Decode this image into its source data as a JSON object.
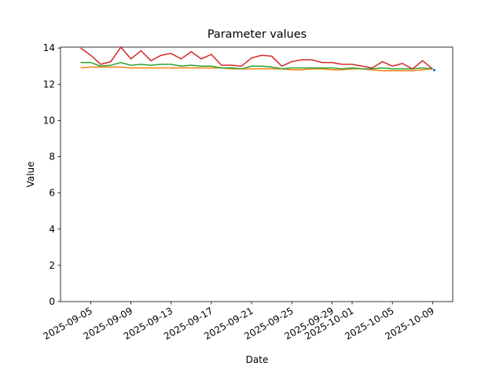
{
  "chart_data": {
    "type": "line",
    "title": "Parameter values",
    "x_label": "Date",
    "y_label": "Value",
    "x": [
      "2025-09-04",
      "2025-09-05",
      "2025-09-06",
      "2025-09-07",
      "2025-09-08",
      "2025-09-09",
      "2025-09-10",
      "2025-09-11",
      "2025-09-12",
      "2025-09-13",
      "2025-09-14",
      "2025-09-15",
      "2025-09-16",
      "2025-09-17",
      "2025-09-18",
      "2025-09-19",
      "2025-09-20",
      "2025-09-21",
      "2025-09-22",
      "2025-09-23",
      "2025-09-24",
      "2025-09-25",
      "2025-09-26",
      "2025-09-27",
      "2025-09-28",
      "2025-09-29",
      "2025-09-30",
      "2025-10-01",
      "2025-10-02",
      "2025-10-03",
      "2025-10-04",
      "2025-10-05",
      "2025-10-06",
      "2025-10-07",
      "2025-10-08",
      "2025-10-09"
    ],
    "series": [
      {
        "color": "#1f77b4",
        "values": [
          null,
          null,
          null,
          null,
          null,
          null,
          null,
          null,
          null,
          null,
          null,
          null,
          null,
          null,
          null,
          null,
          null,
          null,
          null,
          null,
          null,
          null,
          null,
          null,
          null,
          null,
          null,
          null,
          null,
          null,
          null,
          null,
          null,
          null,
          null,
          12.78
        ]
      },
      {
        "color": "#ff7f0e",
        "values": [
          12.9,
          12.95,
          12.95,
          12.95,
          12.95,
          12.9,
          12.9,
          12.9,
          12.9,
          12.9,
          12.9,
          12.9,
          12.9,
          12.9,
          12.9,
          12.85,
          12.85,
          12.85,
          12.85,
          12.85,
          12.85,
          12.8,
          12.8,
          12.85,
          12.85,
          12.8,
          12.8,
          12.85,
          12.85,
          12.8,
          12.75,
          12.75,
          12.75,
          12.75,
          12.8,
          12.85
        ]
      },
      {
        "color": "#2ca02c",
        "values": [
          13.2,
          13.2,
          13.0,
          13.05,
          13.2,
          13.05,
          13.1,
          13.05,
          13.1,
          13.1,
          13.0,
          13.05,
          13.0,
          13.0,
          12.9,
          12.9,
          12.85,
          13.0,
          13.0,
          12.95,
          12.85,
          12.9,
          12.9,
          12.9,
          12.9,
          12.9,
          12.85,
          12.9,
          12.85,
          12.85,
          12.9,
          12.85,
          12.85,
          12.85,
          12.9,
          12.85
        ]
      },
      {
        "color": "#d62728",
        "values": [
          14.0,
          13.6,
          13.1,
          13.25,
          14.05,
          13.4,
          13.85,
          13.3,
          13.6,
          13.7,
          13.4,
          13.8,
          13.4,
          13.65,
          13.05,
          13.05,
          13.0,
          13.45,
          13.6,
          13.55,
          13.0,
          13.25,
          13.35,
          13.35,
          13.2,
          13.2,
          13.1,
          13.1,
          13.0,
          12.9,
          13.25,
          13.0,
          13.15,
          12.85,
          13.3,
          12.85
        ]
      }
    ],
    "xlim": [
      "2025-09-02",
      "2025-10-11"
    ],
    "xticks": [
      "2025-09-05",
      "2025-09-09",
      "2025-09-13",
      "2025-09-17",
      "2025-09-21",
      "2025-09-25",
      "2025-09-29",
      "2025-10-01",
      "2025-10-05",
      "2025-10-09"
    ],
    "ylim": [
      0,
      14.05
    ],
    "yticks": [
      0,
      2,
      4,
      6,
      8,
      10,
      12,
      14
    ]
  }
}
